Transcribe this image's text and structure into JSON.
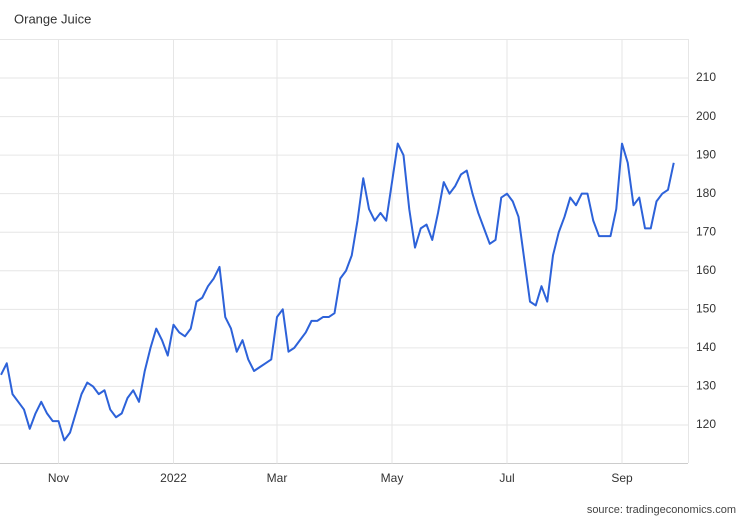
{
  "chart_data": {
    "type": "line",
    "title": "Orange Juice",
    "source": "source: tradingeconomics.com",
    "categories": [
      null,
      null,
      null,
      null,
      null,
      null,
      null,
      null,
      null,
      null,
      "Nov",
      null,
      null,
      null,
      null,
      null,
      null,
      null,
      null,
      null,
      null,
      null,
      null,
      null,
      null,
      null,
      null,
      null,
      null,
      null,
      "2022",
      null,
      null,
      null,
      null,
      null,
      null,
      null,
      null,
      null,
      null,
      null,
      null,
      null,
      null,
      null,
      null,
      null,
      "Mar",
      null,
      null,
      null,
      null,
      null,
      null,
      null,
      null,
      null,
      null,
      null,
      null,
      null,
      null,
      null,
      null,
      null,
      null,
      null,
      "May",
      null,
      null,
      null,
      null,
      null,
      null,
      null,
      null,
      null,
      null,
      null,
      null,
      null,
      null,
      null,
      null,
      null,
      null,
      null,
      "Jul",
      null,
      null,
      null,
      null,
      null,
      null,
      null,
      null,
      null,
      null,
      null,
      null,
      null,
      null,
      null,
      null,
      null,
      null,
      null,
      "Sep",
      null,
      null,
      null,
      null,
      null,
      null,
      null,
      null,
      null
    ],
    "series": [
      {
        "name": "Orange Juice",
        "color": "#2d62d9",
        "values": [
          133,
          136,
          128,
          126,
          124,
          119,
          123,
          126,
          123,
          121,
          121,
          116,
          118,
          123,
          128,
          131,
          130,
          128,
          129,
          124,
          122,
          123,
          127,
          129,
          126,
          134,
          140,
          145,
          142,
          138,
          146,
          144,
          143,
          145,
          152,
          153,
          156,
          158,
          161,
          148,
          145,
          139,
          142,
          137,
          134,
          135,
          136,
          137,
          148,
          150,
          139,
          140,
          142,
          144,
          147,
          147,
          148,
          148,
          149,
          158,
          160,
          164,
          173,
          184,
          176,
          173,
          175,
          173,
          183,
          193,
          190,
          176,
          166,
          171,
          172,
          168,
          175,
          183,
          180,
          182,
          185,
          186,
          180,
          175,
          171,
          167,
          168,
          179,
          180,
          178,
          174,
          163,
          152,
          151,
          156,
          152,
          164,
          170,
          174,
          179,
          177,
          180,
          180,
          173,
          169,
          169,
          169,
          176,
          193,
          188,
          177,
          179,
          171,
          171,
          178,
          180,
          181,
          188
        ]
      }
    ],
    "ylim": [
      110,
      220
    ],
    "yticks": [
      120,
      130,
      140,
      150,
      160,
      170,
      180,
      190,
      200,
      210
    ],
    "grid": true
  }
}
